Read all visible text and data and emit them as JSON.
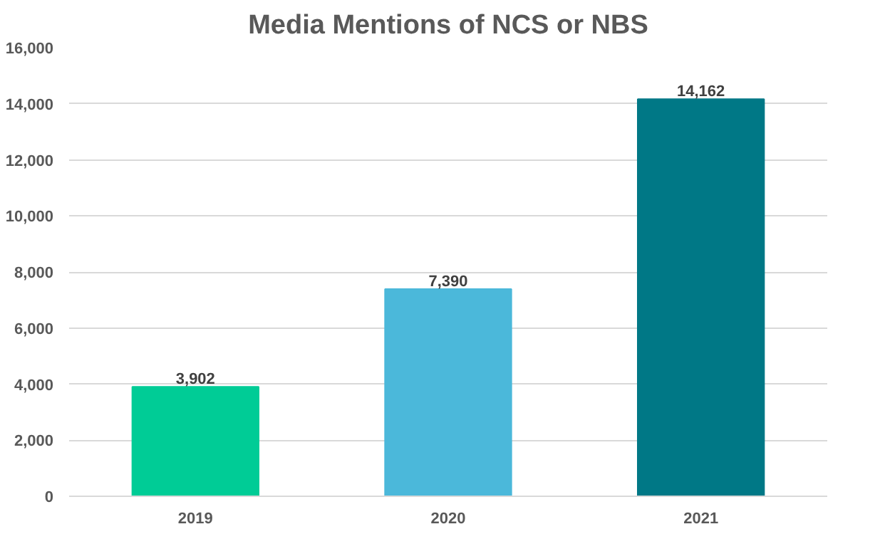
{
  "chart_data": {
    "type": "bar",
    "title": "Media Mentions of NCS or NBS",
    "categories": [
      "2019",
      "2020",
      "2021"
    ],
    "values": [
      3902,
      7390,
      14162
    ],
    "colors": [
      "#00cc96",
      "#4bb8da",
      "#007886"
    ],
    "ylim": [
      0,
      16000
    ],
    "yticks": [
      {
        "value": 0,
        "label": "0"
      },
      {
        "value": 2000,
        "label": "2,000"
      },
      {
        "value": 4000,
        "label": "4,000"
      },
      {
        "value": 6000,
        "label": "6,000"
      },
      {
        "value": 8000,
        "label": "8,000"
      },
      {
        "value": 10000,
        "label": "10,000"
      },
      {
        "value": 12000,
        "label": "12,000"
      },
      {
        "value": 14000,
        "label": "14,000"
      },
      {
        "value": 16000,
        "label": "16,000"
      }
    ],
    "value_labels": [
      "3,902",
      "7,390",
      "14,162"
    ],
    "grid": "y"
  }
}
